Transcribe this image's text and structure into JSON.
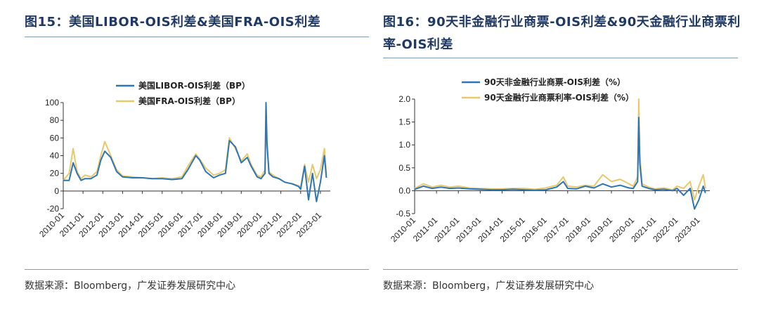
{
  "left_title": "图15：美国LIBOR-OIS利差&美国FRA-OIS利差",
  "right_title": "图16：90天非金融行业商票-OIS利差&90天金融行业商票利率-OIS利差",
  "left_source": "数据来源：Bloomberg，广发证券发展研究中心",
  "right_source": "数据来源：Bloomberg，广发证券发展研究中心",
  "colors": {
    "series_blue": "#2e75b6",
    "series_gold": "#e8c96a",
    "title": "#1f3864"
  },
  "chart_data": [
    {
      "type": "line",
      "title": "",
      "xlabel": "",
      "ylabel": "",
      "ylim": [
        -20,
        100
      ],
      "yticks": [
        100,
        80,
        60,
        40,
        20,
        0,
        -20
      ],
      "x_tick_labels": [
        "2010-01",
        "2011-01",
        "2012-01",
        "2013-01",
        "2014-01",
        "2015-01",
        "2016-01",
        "2017-01",
        "2018-01",
        "2019-01",
        "2020-01",
        "2021-01",
        "2022-01",
        "2023-01"
      ],
      "xlim": [
        2010.0,
        2023.5
      ],
      "legend": "top-center",
      "series": [
        {
          "name": "美国LIBOR-OIS利差（BP）",
          "color_key": "series_blue",
          "x": [
            2010.0,
            2010.3,
            2010.5,
            2010.7,
            2010.9,
            2011.1,
            2011.4,
            2011.7,
            2011.9,
            2012.1,
            2012.4,
            2012.7,
            2013.0,
            2013.5,
            2014.0,
            2014.5,
            2015.0,
            2015.5,
            2016.0,
            2016.3,
            2016.7,
            2016.9,
            2017.2,
            2017.6,
            2017.9,
            2018.2,
            2018.4,
            2018.7,
            2019.0,
            2019.3,
            2019.5,
            2019.8,
            2020.0,
            2020.2,
            2020.25,
            2020.3,
            2020.4,
            2020.6,
            2020.9,
            2021.2,
            2021.6,
            2021.9,
            2022.0,
            2022.2,
            2022.4,
            2022.6,
            2022.8,
            2023.0,
            2023.2,
            2023.3
          ],
          "values": [
            12,
            12,
            32,
            20,
            12,
            14,
            14,
            18,
            35,
            45,
            38,
            22,
            16,
            15,
            15,
            14,
            14,
            13,
            14,
            24,
            40,
            35,
            22,
            15,
            18,
            20,
            57,
            50,
            32,
            38,
            28,
            16,
            14,
            20,
            100,
            55,
            20,
            16,
            14,
            10,
            8,
            5,
            2,
            28,
            -10,
            20,
            -12,
            10,
            40,
            15
          ]
        },
        {
          "name": "美国FRA-OIS利差（BP）",
          "color_key": "series_gold",
          "x": [
            2010.0,
            2010.3,
            2010.5,
            2010.7,
            2010.9,
            2011.1,
            2011.4,
            2011.7,
            2011.9,
            2012.1,
            2012.4,
            2012.7,
            2013.0,
            2013.5,
            2014.0,
            2014.5,
            2015.0,
            2015.5,
            2016.0,
            2016.3,
            2016.7,
            2016.9,
            2017.2,
            2017.6,
            2017.9,
            2018.2,
            2018.4,
            2018.7,
            2019.0,
            2019.3,
            2019.5,
            2019.8,
            2020.0,
            2020.2,
            2020.25,
            2020.3,
            2020.4,
            2020.6,
            2020.9,
            2021.2,
            2021.6,
            2021.9,
            2022.0,
            2022.2,
            2022.4,
            2022.6,
            2022.8,
            2023.0,
            2023.2,
            2023.3
          ],
          "values": [
            12,
            20,
            48,
            22,
            14,
            18,
            16,
            22,
            40,
            56,
            40,
            24,
            17,
            16,
            15,
            14,
            15,
            14,
            16,
            28,
            42,
            36,
            26,
            18,
            20,
            24,
            60,
            48,
            34,
            42,
            30,
            18,
            16,
            24,
            80,
            50,
            22,
            18,
            14,
            10,
            8,
            6,
            4,
            30,
            10,
            30,
            14,
            24,
            48,
            20
          ]
        }
      ]
    },
    {
      "type": "line",
      "title": "",
      "xlabel": "",
      "ylabel": "",
      "ylim": [
        -0.5,
        2.0
      ],
      "yticks": [
        2.0,
        1.5,
        1.0,
        0.5,
        0.0,
        -0.5
      ],
      "ytick_labels": [
        "2.0",
        "1.5",
        "1.0",
        "0.5",
        "0.0",
        "-0.5"
      ],
      "x_tick_labels": [
        "2010-01",
        "2011-01",
        "2012-01",
        "2013-01",
        "2014-01",
        "2015-01",
        "2016-01",
        "2017-01",
        "2018-01",
        "2019-01",
        "2020-01",
        "2021-01",
        "2022-01",
        "2023-01"
      ],
      "xlim": [
        2010.0,
        2023.5
      ],
      "legend": "top-center",
      "series": [
        {
          "name": "90天非金融行业商票-OIS利差（%）",
          "color_key": "series_blue",
          "x": [
            2010.0,
            2010.4,
            2010.8,
            2011.2,
            2011.6,
            2012.0,
            2012.5,
            2013.0,
            2013.5,
            2014.0,
            2014.5,
            2015.0,
            2015.5,
            2016.0,
            2016.5,
            2016.8,
            2017.0,
            2017.4,
            2017.8,
            2018.2,
            2018.6,
            2019.0,
            2019.4,
            2019.8,
            2020.0,
            2020.2,
            2020.25,
            2020.3,
            2020.4,
            2020.7,
            2021.0,
            2021.4,
            2021.8,
            2022.0,
            2022.3,
            2022.6,
            2022.8,
            2023.0,
            2023.2,
            2023.3
          ],
          "values": [
            0.03,
            0.1,
            0.05,
            0.08,
            0.05,
            0.06,
            0.04,
            0.03,
            0.02,
            0.02,
            0.03,
            0.02,
            0.01,
            0.02,
            0.08,
            0.2,
            0.05,
            0.04,
            0.1,
            0.06,
            0.15,
            0.08,
            0.12,
            0.06,
            0.05,
            0.2,
            1.6,
            0.6,
            0.1,
            0.05,
            0.02,
            0.03,
            0.0,
            0.05,
            -0.1,
            0.05,
            -0.4,
            -0.2,
            0.1,
            -0.05
          ]
        },
        {
          "name": "90天金融行业商票利率-OIS利差（%）",
          "color_key": "series_gold",
          "x": [
            2010.0,
            2010.4,
            2010.8,
            2011.2,
            2011.6,
            2012.0,
            2012.5,
            2013.0,
            2013.5,
            2014.0,
            2014.5,
            2015.0,
            2015.5,
            2016.0,
            2016.5,
            2016.8,
            2017.0,
            2017.4,
            2017.8,
            2018.2,
            2018.6,
            2019.0,
            2019.4,
            2019.8,
            2020.0,
            2020.2,
            2020.25,
            2020.3,
            2020.4,
            2020.7,
            2021.0,
            2021.4,
            2021.8,
            2022.0,
            2022.3,
            2022.6,
            2022.8,
            2023.0,
            2023.2,
            2023.3
          ],
          "values": [
            0.05,
            0.15,
            0.08,
            0.12,
            0.08,
            0.1,
            0.06,
            0.05,
            0.04,
            0.04,
            0.05,
            0.05,
            0.03,
            0.06,
            0.12,
            0.3,
            0.1,
            0.08,
            0.12,
            0.1,
            0.35,
            0.2,
            0.25,
            0.15,
            0.1,
            0.3,
            2.0,
            0.8,
            0.15,
            0.08,
            0.04,
            0.06,
            0.02,
            0.1,
            0.05,
            0.2,
            -0.2,
            0.1,
            0.35,
            0.05
          ]
        }
      ]
    }
  ]
}
